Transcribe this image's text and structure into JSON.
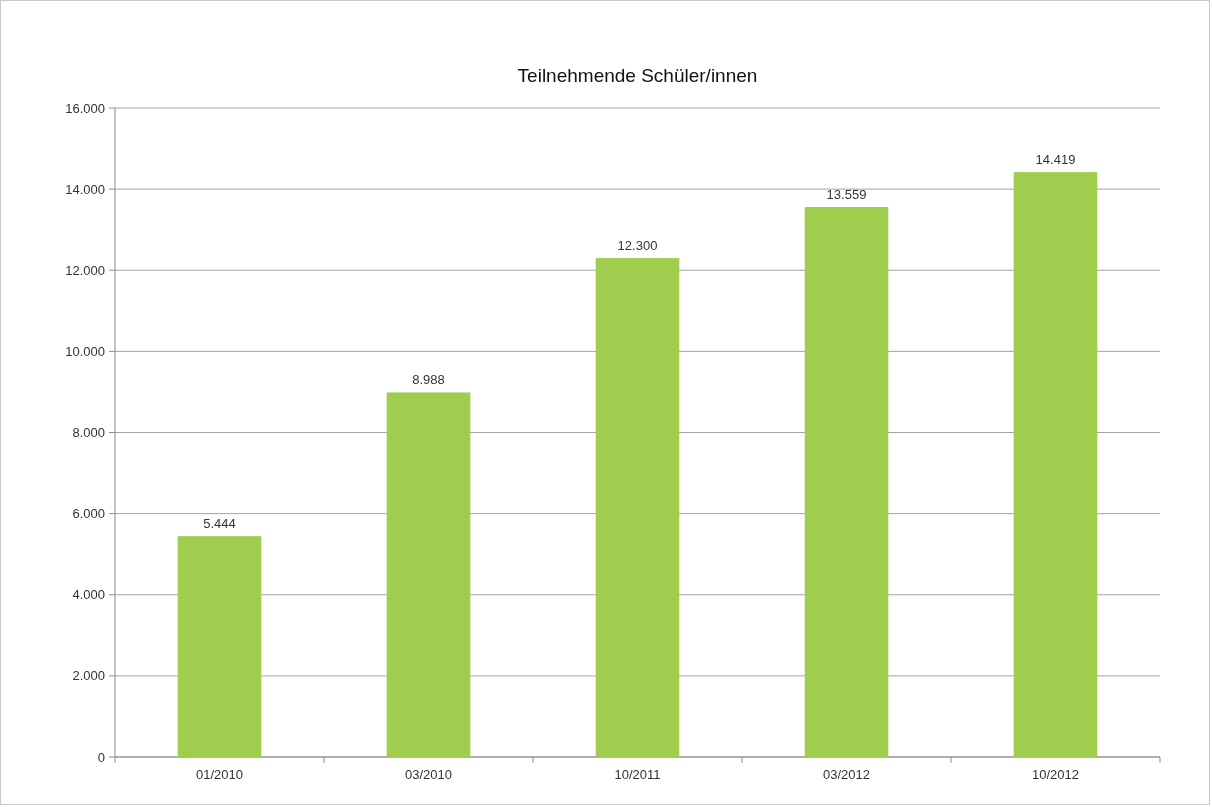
{
  "chart_data": {
    "type": "bar",
    "title": "Teilnehmende Schüler/innen",
    "categories": [
      "01/2010",
      "03/2010",
      "10/2011",
      "03/2012",
      "10/2012"
    ],
    "values": [
      5444,
      8988,
      12300,
      13559,
      14419
    ],
    "value_labels": [
      "5.444",
      "8.988",
      "12.300",
      "13.559",
      "14.419"
    ],
    "color": "#a0cd4e",
    "ylim": [
      0,
      16000
    ],
    "yticks": [
      {
        "value": 0,
        "label": "0"
      },
      {
        "value": 2000,
        "label": "2.000"
      },
      {
        "value": 4000,
        "label": "4.000"
      },
      {
        "value": 6000,
        "label": "6.000"
      },
      {
        "value": 8000,
        "label": "8.000"
      },
      {
        "value": 10000,
        "label": "10.000"
      },
      {
        "value": 12000,
        "label": "12.000"
      },
      {
        "value": 14000,
        "label": "14.000"
      },
      {
        "value": 16000,
        "label": "16.000"
      }
    ],
    "grid": "y"
  }
}
